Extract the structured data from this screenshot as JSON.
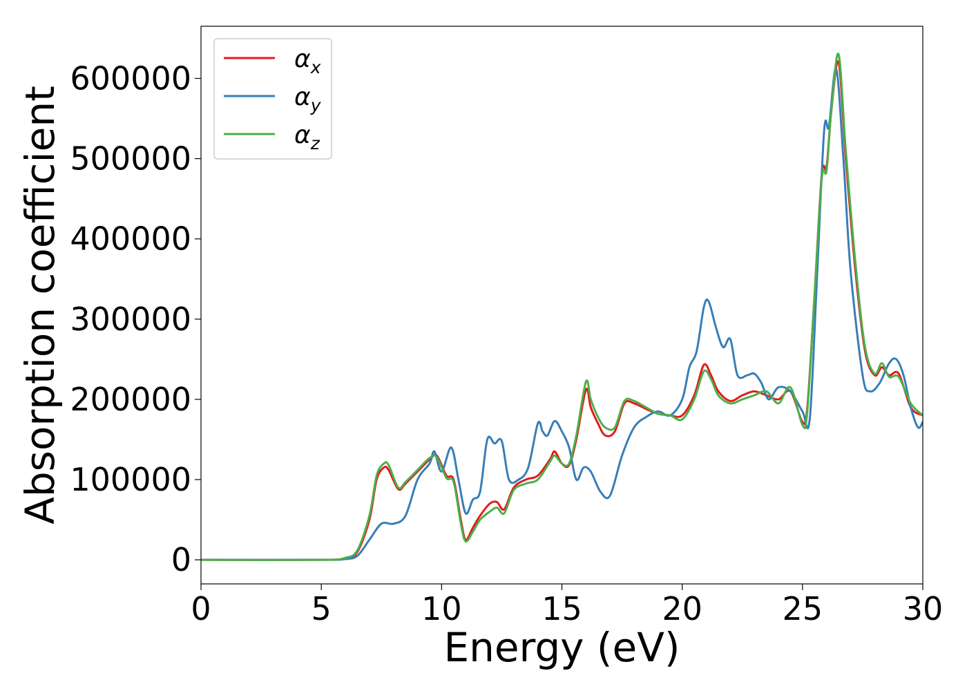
{
  "chart_data": {
    "type": "line",
    "title": "",
    "xlabel": "Energy (eV)",
    "ylabel": "Absorption coefficient",
    "xlim": [
      0,
      30
    ],
    "ylim": [
      -30000,
      665000
    ],
    "xticks": [
      0,
      5,
      10,
      15,
      20,
      25,
      30
    ],
    "yticks": [
      0,
      100000,
      200000,
      300000,
      400000,
      500000,
      600000
    ],
    "grid": false,
    "legend": {
      "position": "top-left"
    },
    "series": [
      {
        "name": "α",
        "subscript": "x",
        "color": "#e41a1c",
        "x": [
          0,
          5,
          6,
          6.5,
          7,
          7.3,
          7.6,
          7.8,
          8.2,
          8.5,
          9.0,
          9.5,
          9.8,
          10.2,
          10.5,
          10.8,
          11.0,
          11.3,
          11.6,
          12.0,
          12.3,
          12.6,
          13.0,
          13.5,
          14.0,
          14.5,
          14.7,
          15.0,
          15.3,
          15.6,
          16.0,
          16.2,
          16.5,
          16.8,
          17.2,
          17.6,
          18.0,
          18.5,
          19.0,
          19.5,
          20.0,
          20.5,
          20.9,
          21.2,
          21.5,
          22.0,
          22.5,
          23.0,
          23.5,
          24.0,
          24.5,
          25.0,
          25.2,
          25.5,
          25.8,
          26.0,
          26.2,
          26.5,
          26.8,
          27.2,
          27.6,
          28.0,
          28.3,
          28.6,
          29.0,
          29.5,
          30.0
        ],
        "y": [
          0,
          0,
          2000,
          10000,
          50000,
          100000,
          115000,
          112000,
          88000,
          95000,
          110000,
          125000,
          130000,
          105000,
          100000,
          50000,
          25000,
          40000,
          55000,
          70000,
          72000,
          63000,
          90000,
          100000,
          105000,
          125000,
          135000,
          120000,
          118000,
          150000,
          212000,
          190000,
          170000,
          155000,
          160000,
          195000,
          195000,
          188000,
          182000,
          180000,
          180000,
          205000,
          243000,
          230000,
          210000,
          198000,
          205000,
          210000,
          205000,
          200000,
          210000,
          172000,
          190000,
          330000,
          480000,
          490000,
          560000,
          620000,
          500000,
          360000,
          260000,
          230000,
          240000,
          230000,
          232000,
          190000,
          180000
        ]
      },
      {
        "name": "α",
        "subscript": "y",
        "color": "#377eb8",
        "x": [
          0,
          5,
          6,
          6.5,
          7,
          7.5,
          8.0,
          8.5,
          9.0,
          9.5,
          9.7,
          10.0,
          10.4,
          10.7,
          11.0,
          11.3,
          11.6,
          11.9,
          12.2,
          12.5,
          12.8,
          13.2,
          13.6,
          14.0,
          14.2,
          14.4,
          14.7,
          15.0,
          15.3,
          15.6,
          15.9,
          16.2,
          16.6,
          17.0,
          17.5,
          18.0,
          18.5,
          19.0,
          19.5,
          20.0,
          20.3,
          20.6,
          20.9,
          21.1,
          21.4,
          21.7,
          22.0,
          22.3,
          22.7,
          23.0,
          23.3,
          23.6,
          24.0,
          24.5,
          25.0,
          25.3,
          25.6,
          25.9,
          26.1,
          26.4,
          26.7,
          27.0,
          27.5,
          27.8,
          28.2,
          28.6,
          28.9,
          29.2,
          29.5,
          29.8,
          30.0
        ],
        "y": [
          0,
          0,
          1000,
          5000,
          25000,
          45000,
          45000,
          55000,
          100000,
          120000,
          135000,
          110000,
          140000,
          100000,
          58000,
          75000,
          85000,
          150000,
          145000,
          148000,
          100000,
          100000,
          115000,
          170000,
          160000,
          155000,
          173000,
          160000,
          140000,
          100000,
          115000,
          110000,
          85000,
          80000,
          130000,
          165000,
          178000,
          185000,
          180000,
          200000,
          240000,
          260000,
          315000,
          322000,
          290000,
          265000,
          275000,
          230000,
          230000,
          232000,
          220000,
          200000,
          215000,
          210000,
          185000,
          175000,
          350000,
          535000,
          540000,
          612000,
          500000,
          360000,
          230000,
          210000,
          220000,
          245000,
          250000,
          230000,
          190000,
          165000,
          172000
        ]
      },
      {
        "name": "α",
        "subscript": "z",
        "color": "#4daf4a",
        "x": [
          0,
          5,
          6,
          6.5,
          7,
          7.3,
          7.6,
          7.8,
          8.2,
          8.5,
          9.0,
          9.5,
          9.8,
          10.2,
          10.5,
          10.8,
          11.0,
          11.3,
          11.6,
          12.0,
          12.3,
          12.6,
          13.0,
          13.5,
          14.0,
          14.5,
          14.7,
          15.0,
          15.3,
          15.6,
          16.0,
          16.2,
          16.5,
          16.8,
          17.2,
          17.6,
          18.0,
          18.5,
          19.0,
          19.5,
          20.0,
          20.5,
          20.9,
          21.2,
          21.5,
          22.0,
          22.5,
          23.0,
          23.5,
          24.0,
          24.5,
          25.0,
          25.2,
          25.5,
          25.8,
          26.0,
          26.2,
          26.5,
          26.8,
          27.2,
          27.6,
          28.0,
          28.3,
          28.6,
          29.0,
          29.5,
          30.0
        ],
        "y": [
          0,
          0,
          2500,
          12000,
          55000,
          105000,
          120000,
          118000,
          90000,
          97000,
          112000,
          127000,
          128000,
          102000,
          97000,
          45000,
          23000,
          35000,
          50000,
          60000,
          65000,
          58000,
          87000,
          95000,
          100000,
          122000,
          130000,
          120000,
          120000,
          155000,
          222000,
          200000,
          178000,
          165000,
          165000,
          198000,
          198000,
          190000,
          182000,
          180000,
          175000,
          200000,
          235000,
          225000,
          205000,
          195000,
          200000,
          205000,
          210000,
          195000,
          215000,
          168000,
          185000,
          330000,
          475000,
          485000,
          560000,
          630000,
          510000,
          370000,
          265000,
          232000,
          245000,
          228000,
          228000,
          195000,
          180000
        ]
      }
    ]
  }
}
